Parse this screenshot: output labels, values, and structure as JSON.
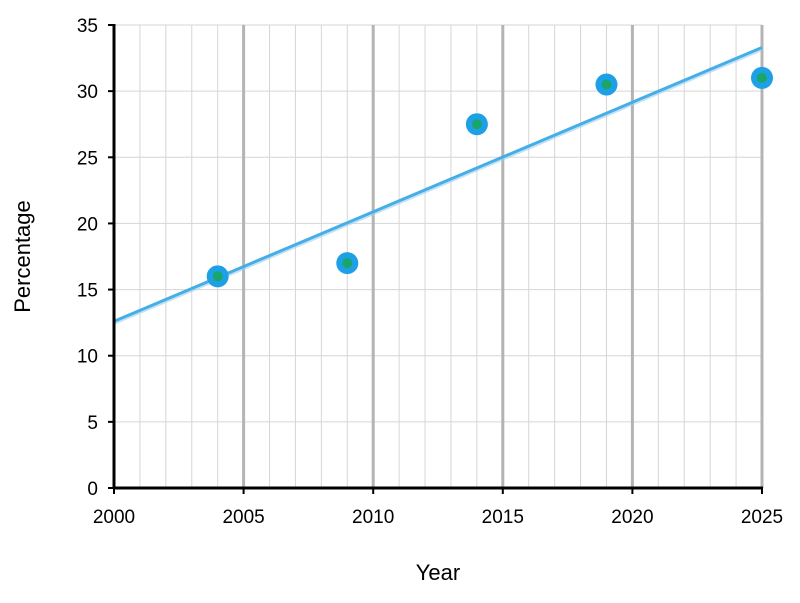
{
  "chart_data": {
    "type": "scatter",
    "title": "",
    "xlabel": "Year",
    "ylabel": "Percentage",
    "xlim": [
      2000,
      2025
    ],
    "ylim": [
      0,
      35
    ],
    "x_ticks": [
      2000,
      2005,
      2010,
      2015,
      2020,
      2025
    ],
    "y_ticks": [
      0,
      5,
      10,
      15,
      20,
      25,
      30,
      35
    ],
    "grid": true,
    "legend": "none",
    "series": [
      {
        "x": [
          2004,
          2009,
          2014,
          2019,
          2025
        ],
        "y": [
          16,
          17,
          27.5,
          30.5,
          31
        ]
      }
    ],
    "trendline": {
      "type": "linear",
      "x": [
        2000,
        2025
      ],
      "y": [
        12.6,
        33.3
      ]
    },
    "colors": {
      "marker_outer": "#1ea0e6",
      "marker_inner": "#1aa66a",
      "trendline": "#45aee6",
      "grid_major": "#b4b4b4",
      "grid_minor": "#d6d6d6",
      "axis": "#000000"
    }
  }
}
